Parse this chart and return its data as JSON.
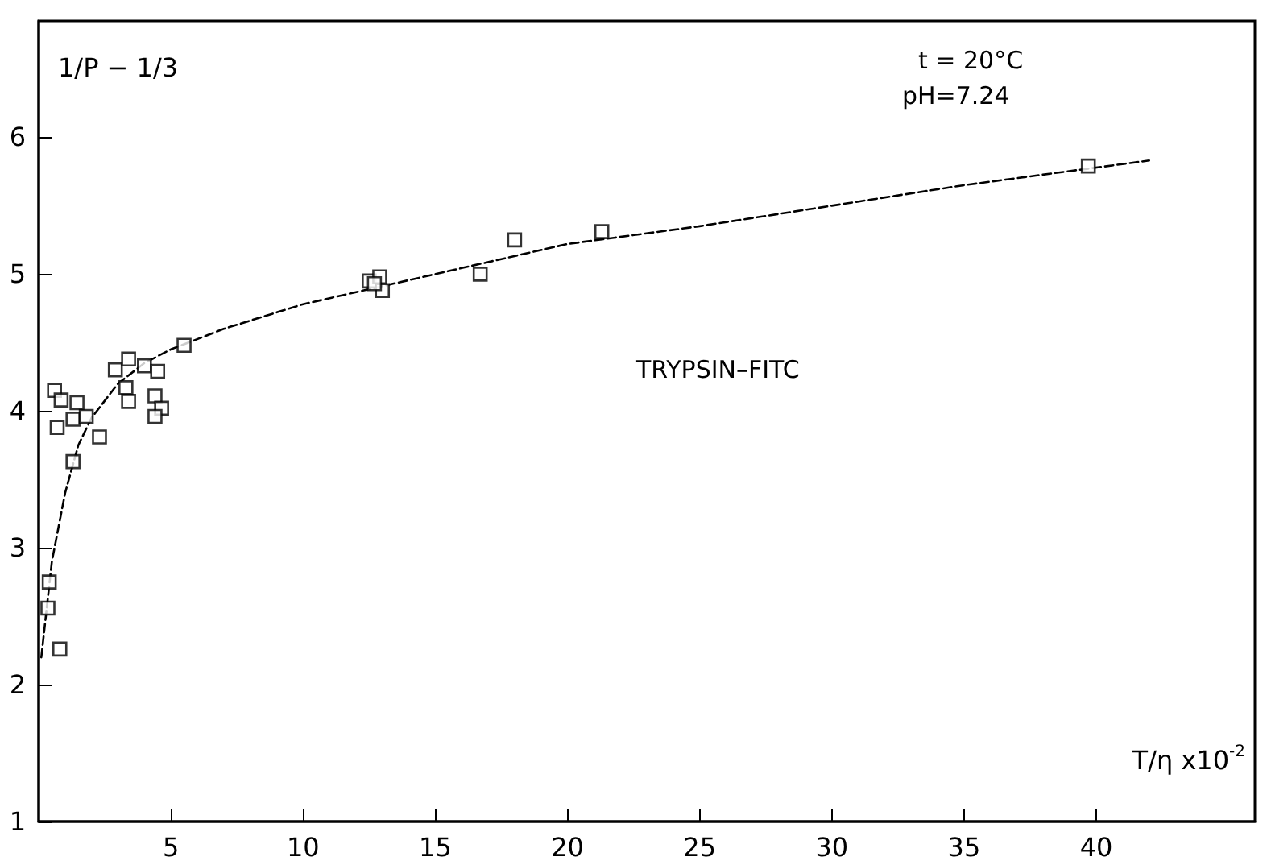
{
  "chart_data": {
    "type": "scatter",
    "xlabel": "T/η x10$^{-2}$",
    "ylabel": "1/P − 1/3",
    "annotations": [
      "t = 20°C",
      "pH=7.24",
      "TRYPSIN–FITC"
    ],
    "xlim": [
      0,
      46
    ],
    "ylim": [
      1,
      6.85
    ],
    "xticks": [
      5,
      10,
      15,
      20,
      25,
      30,
      35,
      40
    ],
    "yticks": [
      1,
      2,
      3,
      4,
      5,
      6
    ],
    "marker": "square",
    "series": [
      {
        "color": "#000000",
        "x": [
          0.6,
          0.85,
          0.7,
          1.3,
          1.45,
          1.8,
          2.3,
          1.3,
          2.9,
          3.4,
          3.3,
          3.4,
          4.0,
          4.5,
          4.4,
          4.65,
          4.4,
          5.5,
          0.4,
          0.35,
          0.8,
          12.5,
          12.9,
          13.0,
          12.7,
          16.7,
          18.0,
          21.3,
          39.7
        ],
        "values": [
          4.15,
          4.08,
          3.88,
          3.94,
          4.06,
          3.96,
          3.81,
          3.63,
          4.3,
          4.38,
          4.17,
          4.07,
          4.33,
          4.29,
          4.11,
          4.02,
          3.96,
          4.48,
          2.75,
          2.56,
          2.26,
          4.95,
          4.98,
          4.88,
          4.93,
          5.0,
          5.25,
          5.31,
          5.79
        ]
      },
      {
        "type": "line",
        "marker": "none",
        "line_style": "dashed",
        "color": "#000000",
        "x": [
          0.1,
          0.5,
          1,
          1.5,
          2,
          3,
          4,
          5,
          7,
          10,
          15,
          20,
          25,
          30,
          35,
          42
        ],
        "values": [
          2.2,
          2.9,
          3.4,
          3.75,
          3.95,
          4.2,
          4.35,
          4.45,
          4.6,
          4.78,
          5.0,
          5.22,
          5.35,
          5.5,
          5.65,
          5.83
        ]
      }
    ]
  }
}
